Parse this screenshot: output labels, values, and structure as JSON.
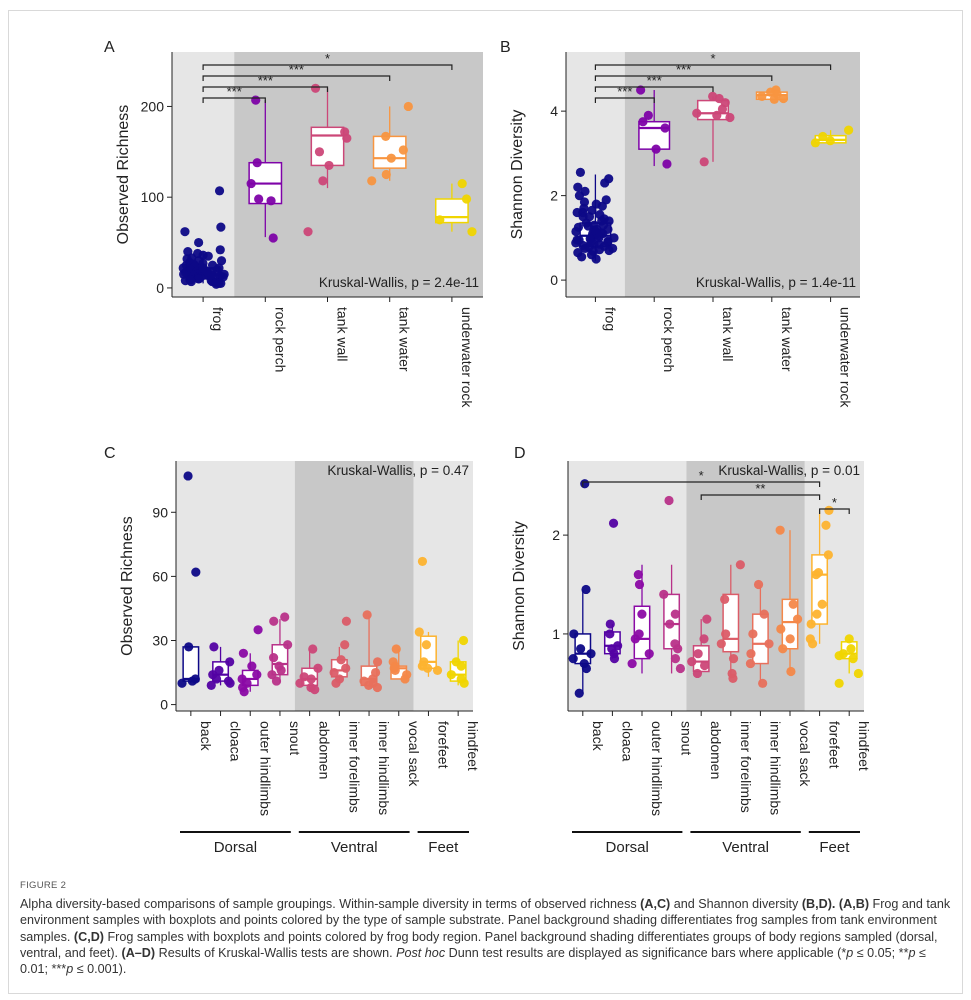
{
  "figure_label": "FIGURE 2",
  "caption": {
    "s1": "Alpha diversity-based comparisons of sample groupings. Within-sample diversity in terms of observed richness ",
    "b1": "(A,C)",
    "s2": " and Shannon diversity ",
    "b2": "(B,D). (A,B)",
    "s3": " Frog and tank environment samples with boxplots and points colored by the type of sample substrate. Panel background shading differentiates frog samples from tank environment samples. ",
    "b3": "(C,D)",
    "s4": " Frog samples with boxplots and points colored by frog body region. Panel background shading differentiates groups of body regions sampled (dorsal, ventral, and feet). ",
    "b4": "(A–D)",
    "s5": " Results of Kruskal-Wallis tests are shown. ",
    "i1": "Post hoc",
    "s6": " Dunn test results are displayed as significance bars where applicable (*",
    "i2": "p",
    "s7": " ≤ 0.05; **",
    "i3": "p",
    "s8": " ≤ 0.01; ***",
    "i4": "p",
    "s9": " ≤ 0.001)."
  },
  "chart_data": [
    {
      "panel": "A",
      "type": "box+scatter",
      "ylabel": "Observed Richness",
      "ylim": [
        -10,
        260
      ],
      "yticks": [
        0,
        100,
        200
      ],
      "test_label": "Kruskal-Wallis, p = 2.4e-11",
      "categories": [
        "frog",
        "rock perch",
        "tank wall",
        "tank water",
        "underwater rock"
      ],
      "colors": [
        "#0d0887",
        "#7e03a8",
        "#cc4778",
        "#f89540",
        "#f0d500"
      ],
      "shading": [
        {
          "from": 0,
          "to": 1,
          "fill": "#e6e6e6"
        },
        {
          "from": 1,
          "to": 5,
          "fill": "#c8c8c8"
        }
      ],
      "boxes": [
        {
          "q1": 10,
          "median": 15,
          "q3": 22,
          "lo": 5,
          "hi": 40
        },
        {
          "q1": 93,
          "median": 115,
          "q3": 138,
          "lo": 56,
          "hi": 207
        },
        {
          "q1": 135,
          "median": 168,
          "q3": 177,
          "lo": 110,
          "hi": 220
        },
        {
          "q1": 132,
          "median": 143,
          "q3": 167,
          "lo": 118,
          "hi": 200
        },
        {
          "q1": 72,
          "median": 78,
          "q3": 98,
          "lo": 62,
          "hi": 115
        }
      ],
      "points": [
        [
          107,
          67,
          62,
          50,
          42,
          40,
          38,
          36,
          35,
          33,
          32,
          30,
          30,
          28,
          27,
          26,
          25,
          25,
          24,
          23,
          22,
          22,
          21,
          20,
          20,
          19,
          19,
          18,
          18,
          17,
          17,
          16,
          16,
          15,
          15,
          15,
          14,
          14,
          13,
          13,
          12,
          12,
          11,
          11,
          10,
          10,
          9,
          9,
          8,
          8,
          7,
          7,
          6,
          5,
          5,
          4,
          14,
          18,
          22,
          12
        ],
        [
          207,
          138,
          115,
          98,
          96,
          55
        ],
        [
          220,
          172,
          165,
          150,
          135,
          118,
          62
        ],
        [
          200,
          167,
          152,
          143,
          125,
          118
        ],
        [
          115,
          98,
          75,
          62
        ]
      ],
      "significance": [
        {
          "from": 0,
          "to": 4,
          "label": "*"
        },
        {
          "from": 0,
          "to": 3,
          "label": "***"
        },
        {
          "from": 0,
          "to": 2,
          "label": "***"
        },
        {
          "from": 0,
          "to": 1,
          "label": "***"
        }
      ]
    },
    {
      "panel": "B",
      "type": "box+scatter",
      "ylabel": "Shannon Diversity",
      "ylim": [
        -0.4,
        5.4
      ],
      "yticks": [
        0,
        2,
        4
      ],
      "test_label": "Kruskal-Wallis, p = 1.4e-11",
      "categories": [
        "frog",
        "rock perch",
        "tank wall",
        "tank water",
        "underwater rock"
      ],
      "colors": [
        "#0d0887",
        "#7e03a8",
        "#cc4778",
        "#f89540",
        "#f0d500"
      ],
      "shading": [
        {
          "from": 0,
          "to": 1,
          "fill": "#e6e6e6"
        },
        {
          "from": 1,
          "to": 5,
          "fill": "#c8c8c8"
        }
      ],
      "boxes": [
        {
          "q1": 0.8,
          "median": 1.05,
          "q3": 1.35,
          "lo": 0.45,
          "hi": 2.5
        },
        {
          "q1": 3.1,
          "median": 3.6,
          "q3": 3.75,
          "lo": 2.7,
          "hi": 4.5
        },
        {
          "q1": 3.8,
          "median": 3.95,
          "q3": 4.25,
          "lo": 2.8,
          "hi": 4.35
        },
        {
          "q1": 4.28,
          "median": 4.38,
          "q3": 4.45,
          "lo": 4.25,
          "hi": 4.5
        },
        {
          "q1": 3.25,
          "median": 3.32,
          "q3": 3.42,
          "lo": 3.2,
          "hi": 3.55
        }
      ],
      "points": [
        [
          2.55,
          2.4,
          2.3,
          2.2,
          2.1,
          2.0,
          1.9,
          1.85,
          1.8,
          1.75,
          1.7,
          1.65,
          1.6,
          1.55,
          1.5,
          1.45,
          1.4,
          1.35,
          1.3,
          1.28,
          1.25,
          1.2,
          1.18,
          1.15,
          1.12,
          1.1,
          1.08,
          1.05,
          1.02,
          1.0,
          0.98,
          0.95,
          0.92,
          0.9,
          0.88,
          0.85,
          0.82,
          0.8,
          0.78,
          0.75,
          0.72,
          0.7,
          0.68,
          0.65,
          0.6,
          0.55,
          0.5,
          1.1,
          1.3,
          0.9,
          1.5,
          1.2,
          0.95,
          1.05,
          0.85,
          1.6,
          1.15,
          0.75,
          1.4,
          1.0
        ],
        [
          4.5,
          3.9,
          3.75,
          3.6,
          3.1,
          2.75
        ],
        [
          4.35,
          4.3,
          4.2,
          4.05,
          3.95,
          3.9,
          3.85,
          2.8
        ],
        [
          4.5,
          4.45,
          4.4,
          4.35,
          4.3,
          4.28
        ],
        [
          3.55,
          3.4,
          3.3,
          3.25
        ]
      ],
      "significance": [
        {
          "from": 0,
          "to": 4,
          "label": "*"
        },
        {
          "from": 0,
          "to": 3,
          "label": "***"
        },
        {
          "from": 0,
          "to": 2,
          "label": "***"
        },
        {
          "from": 0,
          "to": 1,
          "label": "***"
        }
      ]
    },
    {
      "panel": "C",
      "type": "box+scatter",
      "ylabel": "Observed Richness",
      "ylim": [
        -3,
        114
      ],
      "yticks": [
        0,
        30,
        60,
        90
      ],
      "test_label": "Kruskal-Wallis, p = 0.47",
      "categories": [
        "back",
        "cloaca",
        "outer hindlimbs",
        "snout",
        "abdomen",
        "inner forelimbs",
        "inner hindlimbs",
        "vocal sack",
        "forefeet",
        "hindfeet"
      ],
      "colors": [
        "#0d0887",
        "#5302a3",
        "#8b0aa5",
        "#b83289",
        "#cc4778",
        "#db5c68",
        "#e8705c",
        "#f48849",
        "#fdb32f",
        "#f0d500"
      ],
      "shading": [
        {
          "from": 0,
          "to": 4,
          "fill": "#e6e6e6"
        },
        {
          "from": 4,
          "to": 8,
          "fill": "#c8c8c8"
        },
        {
          "from": 8,
          "to": 10,
          "fill": "#e6e6e6"
        }
      ],
      "groups": [
        {
          "label": "Dorsal",
          "from": 0,
          "to": 4
        },
        {
          "label": "Ventral",
          "from": 4,
          "to": 8
        },
        {
          "label": "Feet",
          "from": 8,
          "to": 10
        }
      ],
      "boxes": [
        {
          "q1": 11,
          "median": 12,
          "q3": 27,
          "lo": 10,
          "hi": 27
        },
        {
          "q1": 11,
          "median": 14,
          "q3": 20,
          "lo": 9,
          "hi": 27
        },
        {
          "q1": 9,
          "median": 12,
          "q3": 16,
          "lo": 6,
          "hi": 24
        },
        {
          "q1": 14,
          "median": 19,
          "q3": 28,
          "lo": 10,
          "hi": 40
        },
        {
          "q1": 9,
          "median": 12,
          "q3": 17,
          "lo": 7,
          "hi": 26
        },
        {
          "q1": 13,
          "median": 16,
          "q3": 21,
          "lo": 9,
          "hi": 27
        },
        {
          "q1": 9,
          "median": 12,
          "q3": 18,
          "lo": 8,
          "hi": 42
        },
        {
          "q1": 12,
          "median": 17,
          "q3": 18,
          "lo": 12,
          "hi": 26
        },
        {
          "q1": 17,
          "median": 20,
          "q3": 32,
          "lo": 13,
          "hi": 34
        },
        {
          "q1": 11,
          "median": 14,
          "q3": 20,
          "lo": 9,
          "hi": 30
        }
      ],
      "points": [
        [
          107,
          62,
          27,
          12,
          11,
          10
        ],
        [
          27,
          20,
          16,
          14,
          12,
          11,
          10,
          9
        ],
        [
          35,
          24,
          18,
          14,
          12,
          10,
          8,
          6
        ],
        [
          41,
          39,
          28,
          22,
          18,
          16,
          14,
          11
        ],
        [
          26,
          17,
          13,
          12,
          10,
          8,
          7
        ],
        [
          39,
          28,
          21,
          17,
          15,
          12,
          10
        ],
        [
          42,
          20,
          15,
          12,
          11,
          10,
          9,
          8
        ],
        [
          26,
          20,
          18,
          17,
          16,
          14,
          12
        ],
        [
          67,
          34,
          28,
          20,
          18,
          17,
          16
        ],
        [
          30,
          20,
          18,
          14,
          12,
          10
        ]
      ]
    },
    {
      "panel": "D",
      "type": "box+scatter",
      "ylabel": "Shannon Diversity",
      "ylim": [
        0.22,
        2.75
      ],
      "yticks": [
        1,
        2
      ],
      "test_label": "Kruskal-Wallis, p = 0.01",
      "categories": [
        "back",
        "cloaca",
        "outer hindlimbs",
        "snout",
        "abdomen",
        "inner forelimbs",
        "inner hindlimbs",
        "vocal sack",
        "forefeet",
        "hindfeet"
      ],
      "colors": [
        "#0d0887",
        "#5302a3",
        "#8b0aa5",
        "#b83289",
        "#cc4778",
        "#db5c68",
        "#e8705c",
        "#f48849",
        "#fdb32f",
        "#f0d500"
      ],
      "shading": [
        {
          "from": 0,
          "to": 4,
          "fill": "#e6e6e6"
        },
        {
          "from": 4,
          "to": 8,
          "fill": "#c8c8c8"
        },
        {
          "from": 8,
          "to": 10,
          "fill": "#e6e6e6"
        }
      ],
      "groups": [
        {
          "label": "Dorsal",
          "from": 0,
          "to": 4
        },
        {
          "label": "Ventral",
          "from": 4,
          "to": 8
        },
        {
          "label": "Feet",
          "from": 8,
          "to": 10
        }
      ],
      "boxes": [
        {
          "q1": 0.7,
          "median": 0.8,
          "q3": 1.0,
          "lo": 0.4,
          "hi": 1.45
        },
        {
          "q1": 0.8,
          "median": 0.88,
          "q3": 1.02,
          "lo": 0.75,
          "hi": 1.1
        },
        {
          "q1": 0.75,
          "median": 0.95,
          "q3": 1.28,
          "lo": 0.6,
          "hi": 1.7
        },
        {
          "q1": 0.85,
          "median": 1.1,
          "q3": 1.4,
          "lo": 0.6,
          "hi": 1.7
        },
        {
          "q1": 0.62,
          "median": 0.72,
          "q3": 0.88,
          "lo": 0.6,
          "hi": 1.15
        },
        {
          "q1": 0.82,
          "median": 0.95,
          "q3": 1.4,
          "lo": 0.55,
          "hi": 1.7
        },
        {
          "q1": 0.7,
          "median": 0.9,
          "q3": 1.2,
          "lo": 0.5,
          "hi": 1.5
        },
        {
          "q1": 0.85,
          "median": 1.12,
          "q3": 1.35,
          "lo": 0.62,
          "hi": 2.05
        },
        {
          "q1": 1.1,
          "median": 1.6,
          "q3": 1.8,
          "lo": 0.9,
          "hi": 2.25
        },
        {
          "q1": 0.75,
          "median": 0.8,
          "q3": 0.92,
          "lo": 0.6,
          "hi": 0.95
        }
      ],
      "points": [
        [
          2.52,
          1.45,
          1.0,
          0.85,
          0.8,
          0.75,
          0.7,
          0.65,
          0.4
        ],
        [
          2.12,
          1.1,
          1.0,
          0.88,
          0.85,
          0.8,
          0.75
        ],
        [
          1.6,
          1.5,
          1.2,
          1.0,
          0.95,
          0.8,
          0.7
        ],
        [
          2.35,
          1.4,
          1.2,
          1.1,
          0.9,
          0.85,
          0.75,
          0.65
        ],
        [
          1.15,
          0.95,
          0.8,
          0.72,
          0.68,
          0.6
        ],
        [
          1.7,
          1.35,
          1.0,
          0.9,
          0.75,
          0.6,
          0.55
        ],
        [
          1.5,
          1.2,
          1.0,
          0.9,
          0.8,
          0.7,
          0.5
        ],
        [
          2.05,
          1.3,
          1.15,
          1.05,
          0.95,
          0.85,
          0.62
        ],
        [
          2.25,
          2.1,
          1.8,
          1.62,
          1.6,
          1.3,
          1.2,
          1.1,
          0.95,
          0.9
        ],
        [
          0.95,
          0.85,
          0.8,
          0.78,
          0.75,
          0.6,
          0.5
        ]
      ],
      "significance": [
        {
          "from": 0,
          "to": 8,
          "label": "*"
        },
        {
          "from": 4,
          "to": 8,
          "label": "**"
        },
        {
          "from": 8,
          "to": 9,
          "label": "*"
        }
      ]
    }
  ]
}
